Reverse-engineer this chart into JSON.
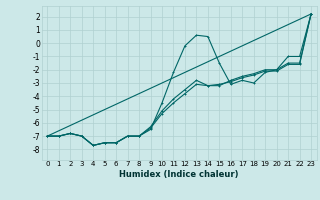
{
  "title": "",
  "xlabel": "Humidex (Indice chaleur)",
  "bg_color": "#cce8e8",
  "grid_color": "#b0d0d0",
  "line_color": "#006666",
  "xlim": [
    -0.5,
    23.5
  ],
  "ylim": [
    -8.8,
    2.8
  ],
  "xticks": [
    0,
    1,
    2,
    3,
    4,
    5,
    6,
    7,
    8,
    9,
    10,
    11,
    12,
    13,
    14,
    15,
    16,
    17,
    18,
    19,
    20,
    21,
    22,
    23
  ],
  "yticks": [
    -8,
    -7,
    -6,
    -5,
    -4,
    -3,
    -2,
    -1,
    0,
    1,
    2
  ],
  "line1_x": [
    0,
    1,
    2,
    3,
    4,
    5,
    6,
    7,
    8,
    9,
    10,
    11,
    12,
    13,
    14,
    15,
    16,
    17,
    18,
    19,
    20,
    21,
    22,
    23
  ],
  "line1_y": [
    -7.0,
    -7.0,
    -6.8,
    -7.0,
    -7.7,
    -7.5,
    -7.5,
    -7.0,
    -7.0,
    -6.5,
    -4.5,
    -2.2,
    -0.2,
    0.6,
    0.5,
    -1.5,
    -3.1,
    -2.8,
    -3.0,
    -2.2,
    -2.0,
    -1.0,
    -1.0,
    2.2
  ],
  "line2_x": [
    0,
    1,
    2,
    3,
    4,
    5,
    6,
    7,
    8,
    9,
    10,
    11,
    12,
    13,
    14,
    15,
    16,
    17,
    18,
    19,
    20,
    21,
    22,
    23
  ],
  "line2_y": [
    -7.0,
    -7.0,
    -6.8,
    -7.0,
    -7.7,
    -7.5,
    -7.5,
    -7.0,
    -7.0,
    -6.3,
    -5.1,
    -4.2,
    -3.5,
    -2.8,
    -3.2,
    -3.2,
    -2.8,
    -2.5,
    -2.3,
    -2.0,
    -2.0,
    -1.5,
    -1.5,
    2.2
  ],
  "line3_x": [
    0,
    1,
    2,
    3,
    4,
    5,
    6,
    7,
    8,
    9,
    10,
    11,
    12,
    13,
    14,
    15,
    16,
    17,
    18,
    19,
    20,
    21,
    22,
    23
  ],
  "line3_y": [
    -7.0,
    -7.0,
    -6.8,
    -7.0,
    -7.7,
    -7.5,
    -7.5,
    -7.0,
    -7.0,
    -6.4,
    -5.3,
    -4.5,
    -3.8,
    -3.1,
    -3.2,
    -3.1,
    -2.9,
    -2.6,
    -2.4,
    -2.1,
    -2.1,
    -1.6,
    -1.6,
    2.2
  ],
  "line4_x": [
    0,
    23
  ],
  "line4_y": [
    -7.0,
    2.2
  ]
}
